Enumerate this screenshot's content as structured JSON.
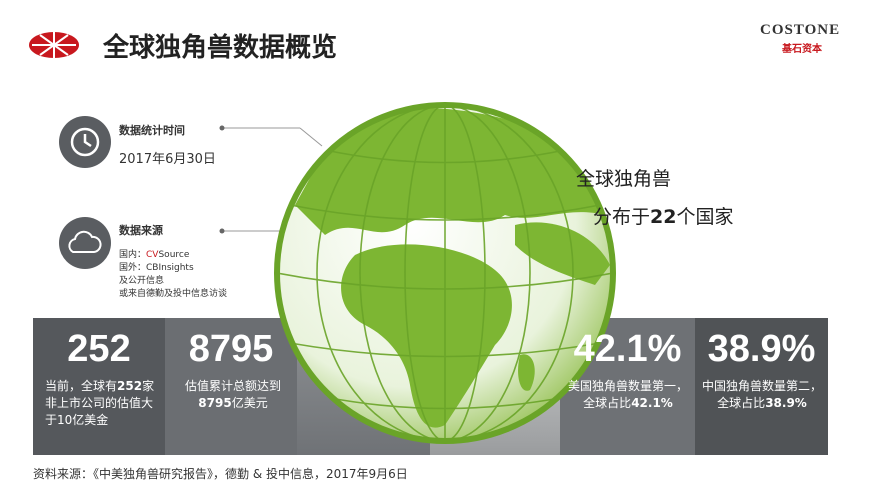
{
  "header": {
    "title": "全球独角兽数据概览",
    "logo": "COSTONE",
    "logo_sub": "基石资本"
  },
  "info": [
    {
      "title": "数据统计时间",
      "lines": [
        "2017年6月30日"
      ]
    },
    {
      "title": "数据来源",
      "lines": [
        [
          "国内：",
          "CV",
          "Source"
        ],
        "国外：CBInsights",
        "及公开信息",
        "或来自德勤及投中信息访谈"
      ]
    }
  ],
  "globe_text": {
    "line1": "全球独角兽",
    "line2": [
      "分布于",
      "22",
      "个国家"
    ]
  },
  "stats": [
    {
      "value": "252",
      "desc": [
        "当前，全球有",
        "252",
        "家非上市公司的估值大于10亿美金"
      ]
    },
    {
      "value": "8795",
      "desc": [
        "估值累计总额达到",
        "8795",
        "亿美元"
      ]
    },
    {
      "value": "42.1%",
      "desc": [
        "美国独角兽数量第一，全球占比",
        "42.1%"
      ]
    },
    {
      "value": "38.9%",
      "desc": [
        "中国独角兽数量第二，全球占比",
        "38.9%"
      ]
    }
  ],
  "footer": "资料来源：《中美独角兽研究报告》，德勤 & 投中信息，2017年9月6日"
}
